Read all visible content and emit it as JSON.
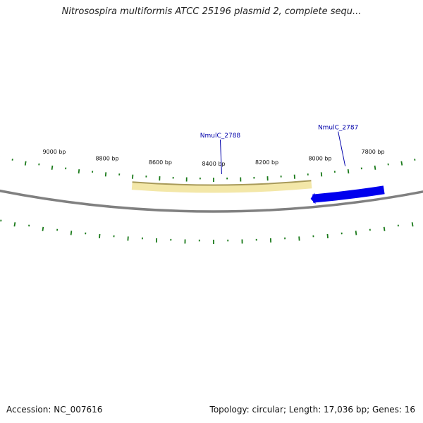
{
  "title": "Nitrosospira multiformis ATCC 25196 plasmid 2, complete sequ...",
  "footer": {
    "accession": "Accession: NC_007616",
    "summary": "Topology: circular; Length: 17,036 bp; Genes: 16"
  },
  "colors": {
    "tick": "#1a7a1a",
    "gene_forward": "#0000ee",
    "gene_reverse": "#f3e7a8",
    "gene_reverse_edge": "#a89a5a",
    "backbone": "#808080",
    "label": "#0000aa"
  },
  "map": {
    "length_bp": 17036,
    "tick_labels": [
      "9000 bp",
      "8800 bp",
      "8600 bp",
      "8400 bp",
      "8200 bp",
      "8000 bp",
      "7800 bp"
    ],
    "tick_positions_bp": [
      9000,
      8800,
      8600,
      8400,
      8200,
      8000,
      7800
    ],
    "genes": [
      {
        "name": "NmulC_2787",
        "strand": "+",
        "start_bp": 7780,
        "end_bp": 8040
      },
      {
        "name": "NmulC_2788",
        "strand": "-",
        "start_bp": 8040,
        "end_bp": 8700
      }
    ]
  }
}
